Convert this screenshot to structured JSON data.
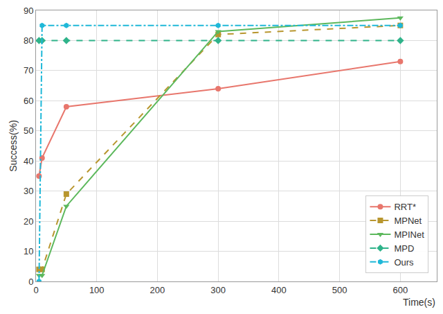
{
  "chart_data": {
    "type": "line",
    "x_label": "Time(s)",
    "y_label": "Success(%)",
    "x": [
      5,
      10,
      50,
      300,
      600
    ],
    "series": [
      {
        "name": "RRT*",
        "color": "#e8766c",
        "marker": "circle",
        "line_style": "solid",
        "values": [
          35,
          41,
          58,
          64,
          73
        ]
      },
      {
        "name": "MPNet",
        "color": "#b8962e",
        "marker": "square",
        "line_style": "dash",
        "values": [
          4,
          4,
          29,
          82,
          85
        ]
      },
      {
        "name": "MPINet",
        "color": "#5cb85c",
        "marker": "triangle-down",
        "line_style": "solid",
        "values": [
          2,
          2,
          25,
          83,
          87.5
        ]
      },
      {
        "name": "MPD",
        "color": "#2fb38a",
        "marker": "diamond",
        "line_style": "dash",
        "values": [
          80,
          80,
          80,
          80,
          80
        ]
      },
      {
        "name": "Ours",
        "color": "#1fb8d8",
        "marker": "hexagon",
        "line_style": "dashdot",
        "values": [
          0,
          85,
          85,
          85,
          85
        ]
      }
    ],
    "xlim": [
      0,
      660
    ],
    "ylim": [
      0,
      90
    ],
    "xticks": [
      0,
      100,
      200,
      300,
      400,
      500,
      600
    ],
    "yticks": [
      0,
      10,
      20,
      30,
      40,
      50,
      60,
      70,
      80,
      90
    ],
    "grid": true,
    "legend": "bottom right"
  }
}
